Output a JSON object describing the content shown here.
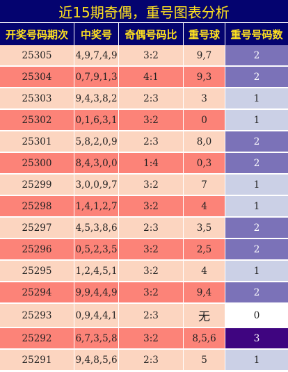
{
  "title": "近15期奇偶，重号图表分析",
  "headers": [
    "开奖号码期次",
    "中奖号",
    "奇偶号码比",
    "重号球",
    "重号号码数"
  ],
  "colors": {
    "header_bg": "#04036f",
    "header_text": "#ffe11f",
    "row_light": "#fcd5c0",
    "row_dark": "#fc8378",
    "count_0": "#ffffff",
    "count_1": "#cbd0e6",
    "count_2": "#7b72b8",
    "count_3": "#3f0580"
  },
  "rows": [
    {
      "period": "25305",
      "numbers": "4,9,7,4,9",
      "ratio": "3:2",
      "repeat": "9,7",
      "count": "2"
    },
    {
      "period": "25304",
      "numbers": "0,7,9,1,3",
      "ratio": "4:1",
      "repeat": "9,3",
      "count": "2"
    },
    {
      "period": "25303",
      "numbers": "9,4,3,8,2",
      "ratio": "2:3",
      "repeat": "3",
      "count": "1"
    },
    {
      "period": "25302",
      "numbers": "0,1,6,3,1",
      "ratio": "3:2",
      "repeat": "0",
      "count": "1"
    },
    {
      "period": "25301",
      "numbers": "5,8,2,0,9",
      "ratio": "2:3",
      "repeat": "8,0",
      "count": "2"
    },
    {
      "period": "25300",
      "numbers": "8,4,3,0,0",
      "ratio": "1:4",
      "repeat": "0,3",
      "count": "2"
    },
    {
      "period": "25299",
      "numbers": "3,0,0,9,7",
      "ratio": "3:2",
      "repeat": "7",
      "count": "1"
    },
    {
      "period": "25298",
      "numbers": "1,4,1,2,7",
      "ratio": "3:2",
      "repeat": "4",
      "count": "1"
    },
    {
      "period": "25297",
      "numbers": "4,5,3,8,6",
      "ratio": "2:3",
      "repeat": "3,5",
      "count": "2"
    },
    {
      "period": "25296",
      "numbers": "0,5,2,3,5",
      "ratio": "3:2",
      "repeat": "2,5",
      "count": "2"
    },
    {
      "period": "25295",
      "numbers": "1,2,4,5,1",
      "ratio": "3:2",
      "repeat": "4",
      "count": "1"
    },
    {
      "period": "25294",
      "numbers": "9,9,4,4,9",
      "ratio": "3:2",
      "repeat": "9,4",
      "count": "2"
    },
    {
      "period": "25293",
      "numbers": "0,9,4,4,1",
      "ratio": "2:3",
      "repeat": "无",
      "count": "0"
    },
    {
      "period": "25292",
      "numbers": "6,7,3,5,8",
      "ratio": "3:2",
      "repeat": "8,5,6",
      "count": "3"
    },
    {
      "period": "25291",
      "numbers": "9,4,8,5,6",
      "ratio": "2:3",
      "repeat": "5",
      "count": "1"
    }
  ]
}
